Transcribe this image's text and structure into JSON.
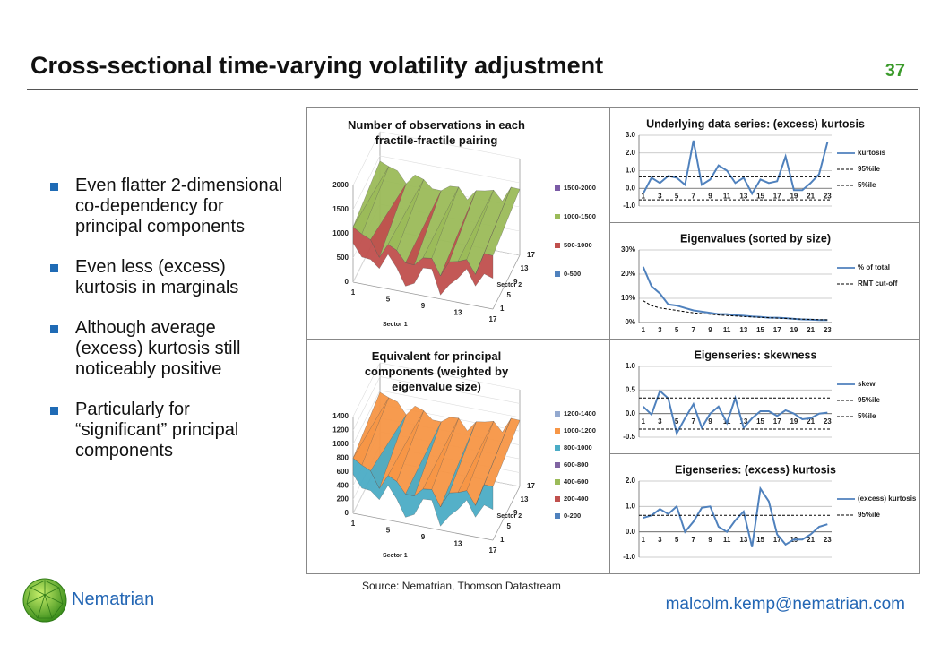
{
  "header": {
    "title": "Cross-sectional time-varying volatility adjustment",
    "page_number": "37"
  },
  "bullets": [
    "Even flatter 2-dimensional co-dependency for principal components",
    "Even less (excess) kurtosis in marginals",
    "Although average (excess) kurtosis still noticeably positive",
    "Particularly for “significant” principal components"
  ],
  "footer": {
    "source": "Source: Nematrian, Thomson Datastream",
    "brand": "Nematrian",
    "email": "malcolm.kemp@nematrian.com"
  },
  "chart_data": [
    {
      "type": "surface3d",
      "title": "Number of observations in each fractile-fractile pairing",
      "xlabel": "Sector 1",
      "ylabel": "Sector 2",
      "zlim": [
        0,
        2000
      ],
      "zticks": [
        0,
        500,
        1000,
        1500,
        2000
      ],
      "xlim": [
        1,
        17
      ],
      "xticks": [
        1,
        5,
        9,
        13,
        17
      ],
      "ylim": [
        1,
        17
      ],
      "yticks": [
        1,
        5,
        9,
        13,
        17
      ],
      "legend": [
        {
          "name": "1500-2000",
          "color": "#7b5ba6"
        },
        {
          "name": "1000-1500",
          "color": "#9bbb59"
        },
        {
          "name": "500-1000",
          "color": "#c0504d"
        },
        {
          "name": "0-500",
          "color": "#4f81bd"
        }
      ]
    },
    {
      "type": "line",
      "title": "Underlying data series: (excess) kurtosis",
      "categories": [
        1,
        null,
        3,
        null,
        5,
        null,
        7,
        null,
        9,
        null,
        11,
        null,
        13,
        null,
        15,
        null,
        17,
        null,
        19,
        null,
        21,
        null,
        23
      ],
      "ylim": [
        -1,
        3
      ],
      "yticks": [
        {
          "value": -1,
          "label": "-1.0"
        },
        {
          "value": 0,
          "label": "0.0"
        },
        {
          "value": 1,
          "label": "1.0"
        },
        {
          "value": 2,
          "label": "2.0"
        },
        {
          "value": 3,
          "label": "3.0"
        }
      ],
      "grid": true,
      "series": [
        {
          "name": "kurtosis",
          "color": "#4f81bd",
          "values": [
            -0.3,
            0.6,
            0.3,
            0.7,
            0.6,
            0.2,
            2.7,
            0.2,
            0.5,
            1.3,
            1.0,
            0.3,
            0.6,
            -0.3,
            0.5,
            0.3,
            0.4,
            1.8,
            -0.1,
            -0.1,
            0.3,
            0.8,
            2.6
          ]
        }
      ],
      "reference_lines": [
        {
          "name": "95%ile",
          "value": 0.65,
          "color": "#000000"
        },
        {
          "name": "5%ile",
          "value": -0.65,
          "color": "#000000"
        }
      ]
    },
    {
      "type": "line",
      "title": "Eigenvalues (sorted by size)",
      "categories": [
        1,
        null,
        3,
        null,
        5,
        null,
        7,
        null,
        9,
        null,
        11,
        null,
        13,
        null,
        15,
        null,
        17,
        null,
        19,
        null,
        21,
        null,
        23
      ],
      "ylim": [
        0,
        30
      ],
      "yticks": [
        {
          "value": 0,
          "label": "0%"
        },
        {
          "value": 10,
          "label": "10%"
        },
        {
          "value": 20,
          "label": "20%"
        },
        {
          "value": 30,
          "label": "30%"
        }
      ],
      "grid": true,
      "series": [
        {
          "name": "% of total",
          "color": "#4f81bd",
          "values": [
            23,
            15,
            12,
            7.5,
            7,
            6,
            5,
            4.5,
            4,
            3.5,
            3.5,
            3,
            2.8,
            2.5,
            2.3,
            2,
            2,
            1.8,
            1.5,
            1.3,
            1.2,
            1,
            1
          ]
        },
        {
          "name": "RMT cut-off",
          "color": "#000000",
          "style": "dashed",
          "values": [
            9,
            7,
            6,
            5.5,
            5,
            4.5,
            4,
            3.7,
            3.4,
            3.1,
            2.9,
            2.7,
            2.5,
            2.3,
            2.1,
            2,
            1.8,
            1.7,
            1.5,
            1.4,
            1.3,
            1.2,
            1.1
          ]
        }
      ]
    },
    {
      "type": "surface3d",
      "title": "Equivalent for principal components (weighted by eigenvalue size)",
      "xlabel": "Sector 1",
      "ylabel": "Sector 2",
      "zlim": [
        0,
        1400
      ],
      "zticks": [
        0,
        200,
        400,
        600,
        800,
        1000,
        1200,
        1400
      ],
      "xlim": [
        1,
        17
      ],
      "xticks": [
        1,
        5,
        9,
        13,
        17
      ],
      "ylim": [
        1,
        17
      ],
      "yticks": [
        1,
        5,
        9,
        13,
        17
      ],
      "legend": [
        {
          "name": "1200-1400",
          "color": "#93a9cf"
        },
        {
          "name": "1000-1200",
          "color": "#f79646"
        },
        {
          "name": "800-1000",
          "color": "#4bacc6"
        },
        {
          "name": "600-800",
          "color": "#8064a2"
        },
        {
          "name": "400-600",
          "color": "#9bbb59"
        },
        {
          "name": "200-400",
          "color": "#c0504d"
        },
        {
          "name": "0-200",
          "color": "#4f81bd"
        }
      ]
    },
    {
      "type": "line",
      "title": "Eigenseries: skewness",
      "categories": [
        1,
        null,
        3,
        null,
        5,
        null,
        7,
        null,
        9,
        null,
        11,
        null,
        13,
        null,
        15,
        null,
        17,
        null,
        19,
        null,
        21,
        null,
        23
      ],
      "ylim": [
        -0.5,
        1
      ],
      "yticks": [
        {
          "value": -0.5,
          "label": "-0.5"
        },
        {
          "value": 0,
          "label": "0.0"
        },
        {
          "value": 0.5,
          "label": "0.5"
        },
        {
          "value": 1,
          "label": "1.0"
        }
      ],
      "grid": true,
      "series": [
        {
          "name": "skew",
          "color": "#4f81bd",
          "values": [
            0.15,
            -0.02,
            0.48,
            0.32,
            -0.42,
            -0.1,
            0.2,
            -0.3,
            0.0,
            0.15,
            -0.2,
            0.33,
            -0.3,
            -0.1,
            0.05,
            0.05,
            -0.05,
            0.07,
            0.0,
            -0.12,
            -0.1,
            0.0,
            0.02
          ]
        }
      ],
      "reference_lines": [
        {
          "name": "95%ile",
          "value": 0.33,
          "color": "#000000"
        },
        {
          "name": "5%ile",
          "value": -0.33,
          "color": "#000000"
        }
      ]
    },
    {
      "type": "line",
      "title": "Eigenseries: (excess) kurtosis",
      "categories": [
        1,
        null,
        3,
        null,
        5,
        null,
        7,
        null,
        9,
        null,
        11,
        null,
        13,
        null,
        15,
        null,
        17,
        null,
        19,
        null,
        21,
        null,
        23
      ],
      "ylim": [
        -1,
        2
      ],
      "yticks": [
        {
          "value": -1,
          "label": "-1.0"
        },
        {
          "value": 0,
          "label": "0.0"
        },
        {
          "value": 1,
          "label": "1.0"
        },
        {
          "value": 2,
          "label": "2.0"
        }
      ],
      "grid": true,
      "series": [
        {
          "name": "(excess) kurtosis",
          "color": "#4f81bd",
          "values": [
            0.55,
            0.65,
            0.9,
            0.7,
            1.0,
            0.0,
            0.4,
            0.95,
            1.0,
            0.2,
            0.0,
            0.45,
            0.8,
            -0.6,
            1.7,
            1.2,
            -0.1,
            -0.5,
            -0.3,
            -0.3,
            -0.1,
            0.2,
            0.3
          ]
        }
      ],
      "reference_lines": [
        {
          "name": "95%ile",
          "value": 0.65,
          "color": "#000000"
        }
      ]
    }
  ]
}
